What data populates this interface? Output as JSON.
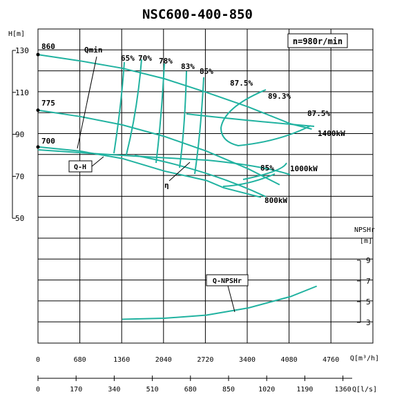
{
  "chart_data": {
    "type": "line",
    "title": "NSC600-400-850",
    "speed_label": "n=980r/min",
    "head_axis": {
      "label": "H[m]",
      "ticks": [
        "130",
        "110",
        "90",
        "70",
        "50"
      ],
      "values": [
        130,
        110,
        90,
        70,
        50
      ]
    },
    "npsh_axis": {
      "label": "NPSHr",
      "unit": "[m]",
      "ticks": [
        "9",
        "7",
        "5",
        "3"
      ],
      "values": [
        9,
        7,
        5,
        3
      ]
    },
    "flow_m3h_axis": {
      "unit": "Q[m³/h]",
      "ticks": [
        "0",
        "680",
        "1360",
        "2040",
        "2720",
        "3400",
        "4080",
        "4760"
      ]
    },
    "flow_ls_axis": {
      "unit": "Q[l/s]",
      "ticks": [
        "0",
        "170",
        "340",
        "510",
        "680",
        "850",
        "1020",
        "1190",
        "1360"
      ]
    },
    "impeller_diameters": [
      "860",
      "775",
      "700"
    ],
    "efficiency_labels": [
      "65%",
      "70%",
      "78%",
      "83%",
      "85%",
      "87.5%",
      "89.3%",
      "87.5%",
      "85%"
    ],
    "power_labels": [
      "1400kW",
      "1000kW",
      "800kW"
    ],
    "curve_labels": {
      "qmin": "Qmin",
      "qh": "Q-H",
      "eta": "η",
      "npshr": "Q-NPSHr"
    },
    "series": [
      {
        "name": "860",
        "x": [
          0,
          680,
          1360,
          2040,
          2720,
          3400,
          4080,
          4420
        ],
        "y": [
          128,
          125,
          121.5,
          116.5,
          110,
          103,
          95,
          92.5
        ]
      },
      {
        "name": "775",
        "x": [
          0,
          680,
          1360,
          2040,
          2720,
          3400,
          3900
        ],
        "y": [
          101.5,
          98.5,
          94.5,
          89,
          82,
          73.5,
          66
        ]
      },
      {
        "name": "700",
        "x": [
          0,
          680,
          1360,
          2040,
          2720,
          3000,
          3600
        ],
        "y": [
          84,
          82,
          78.5,
          72.5,
          68,
          64.5,
          60
        ]
      },
      {
        "name": "Q-NPSHr",
        "x": [
          1360,
          2040,
          2720,
          3400,
          4080,
          4500
        ],
        "y": [
          3.3,
          3.4,
          3.7,
          4.4,
          5.5,
          6.5
        ]
      }
    ]
  }
}
